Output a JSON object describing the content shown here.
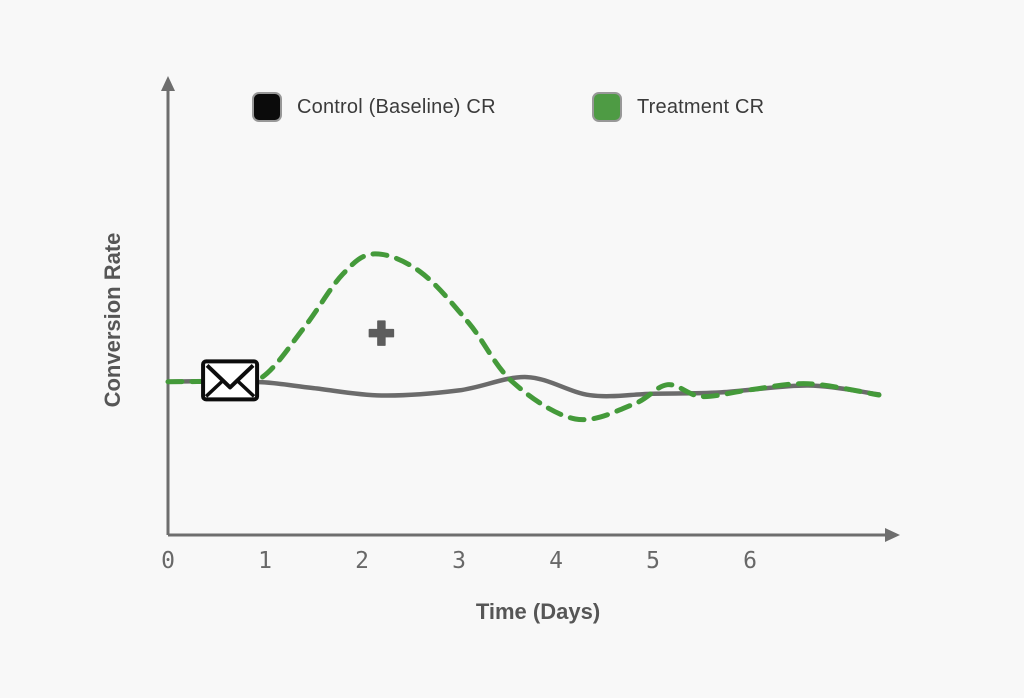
{
  "chart_data": {
    "type": "line",
    "title": "",
    "xlabel": "Time (Days)",
    "ylabel": "Conversion Rate",
    "x_ticks": [
      "0",
      "1",
      "2",
      "3",
      "4",
      "5",
      "6"
    ],
    "x_range_days": [
      0,
      7.45
    ],
    "ylim": [
      0.4,
      2.2
    ],
    "y_axis_unlabeled": true,
    "y_value_note": "y axis has no tick labels; values are relative conversion rate with control baseline ~1.0",
    "grid": false,
    "legend_position": "top",
    "series": [
      {
        "name": "Control (Baseline) CR",
        "color": "#6b6b6b",
        "line_style": "solid",
        "points": [
          [
            0,
            1.0
          ],
          [
            0.5,
            1.002
          ],
          [
            1.0,
            0.997
          ],
          [
            1.5,
            0.975
          ],
          [
            2.2,
            0.946
          ],
          [
            3.0,
            0.966
          ],
          [
            3.7,
            1.018
          ],
          [
            4.35,
            0.947
          ],
          [
            5.0,
            0.953
          ],
          [
            5.7,
            0.958
          ],
          [
            6.6,
            0.985
          ],
          [
            7.33,
            0.95
          ]
        ]
      },
      {
        "name": "Treatment CR",
        "color": "#449a3a",
        "line_style": "dashed",
        "points": [
          [
            0,
            1.0
          ],
          [
            0.5,
            1.002
          ],
          [
            0.95,
            1.012
          ],
          [
            1.4,
            1.21
          ],
          [
            1.8,
            1.42
          ],
          [
            2.13,
            1.5
          ],
          [
            2.6,
            1.43
          ],
          [
            3.1,
            1.23
          ],
          [
            3.55,
            1.0
          ],
          [
            4.2,
            0.854
          ],
          [
            4.8,
            0.912
          ],
          [
            5.15,
            0.988
          ],
          [
            5.5,
            0.942
          ],
          [
            6.0,
            0.968
          ],
          [
            6.6,
            0.992
          ],
          [
            7.33,
            0.948
          ]
        ]
      }
    ],
    "annotations": [
      {
        "id": "email-send-marker",
        "icon": "envelope-icon",
        "day": 0.64,
        "value": 1.005
      },
      {
        "id": "lift-marker",
        "icon": "plus-icon",
        "day": 2.2,
        "value": 1.19
      }
    ],
    "legend_swatch_colors": {
      "control": "#0b0b0b",
      "treatment": "#4e9b44"
    },
    "axis_color": "#6e6e6e",
    "background_color": "#f8f8f8"
  }
}
